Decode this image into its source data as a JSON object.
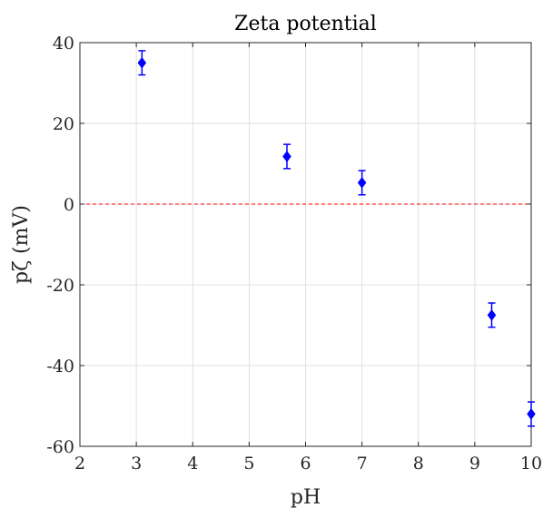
{
  "chart_data": {
    "type": "scatter",
    "title": "Zeta potential",
    "xlabel": "pH",
    "ylabel": "pζ (mV)",
    "xlim": [
      2,
      10
    ],
    "ylim": [
      -60,
      40
    ],
    "xticks": [
      2,
      3,
      4,
      5,
      6,
      7,
      8,
      9,
      10
    ],
    "yticks": [
      -60,
      -40,
      -20,
      0,
      20,
      40
    ],
    "grid": true,
    "marker": "diamond",
    "marker_color": "#0000ff",
    "reference_line": {
      "y": 0,
      "style": "dashed",
      "color": "#ff0000"
    },
    "series": [
      {
        "x": [
          3.1,
          5.67,
          7.0,
          9.3,
          10.0
        ],
        "y": [
          35,
          11.8,
          5.3,
          -27.5,
          -52
        ],
        "error": [
          3,
          3,
          3,
          3,
          3
        ]
      }
    ]
  }
}
